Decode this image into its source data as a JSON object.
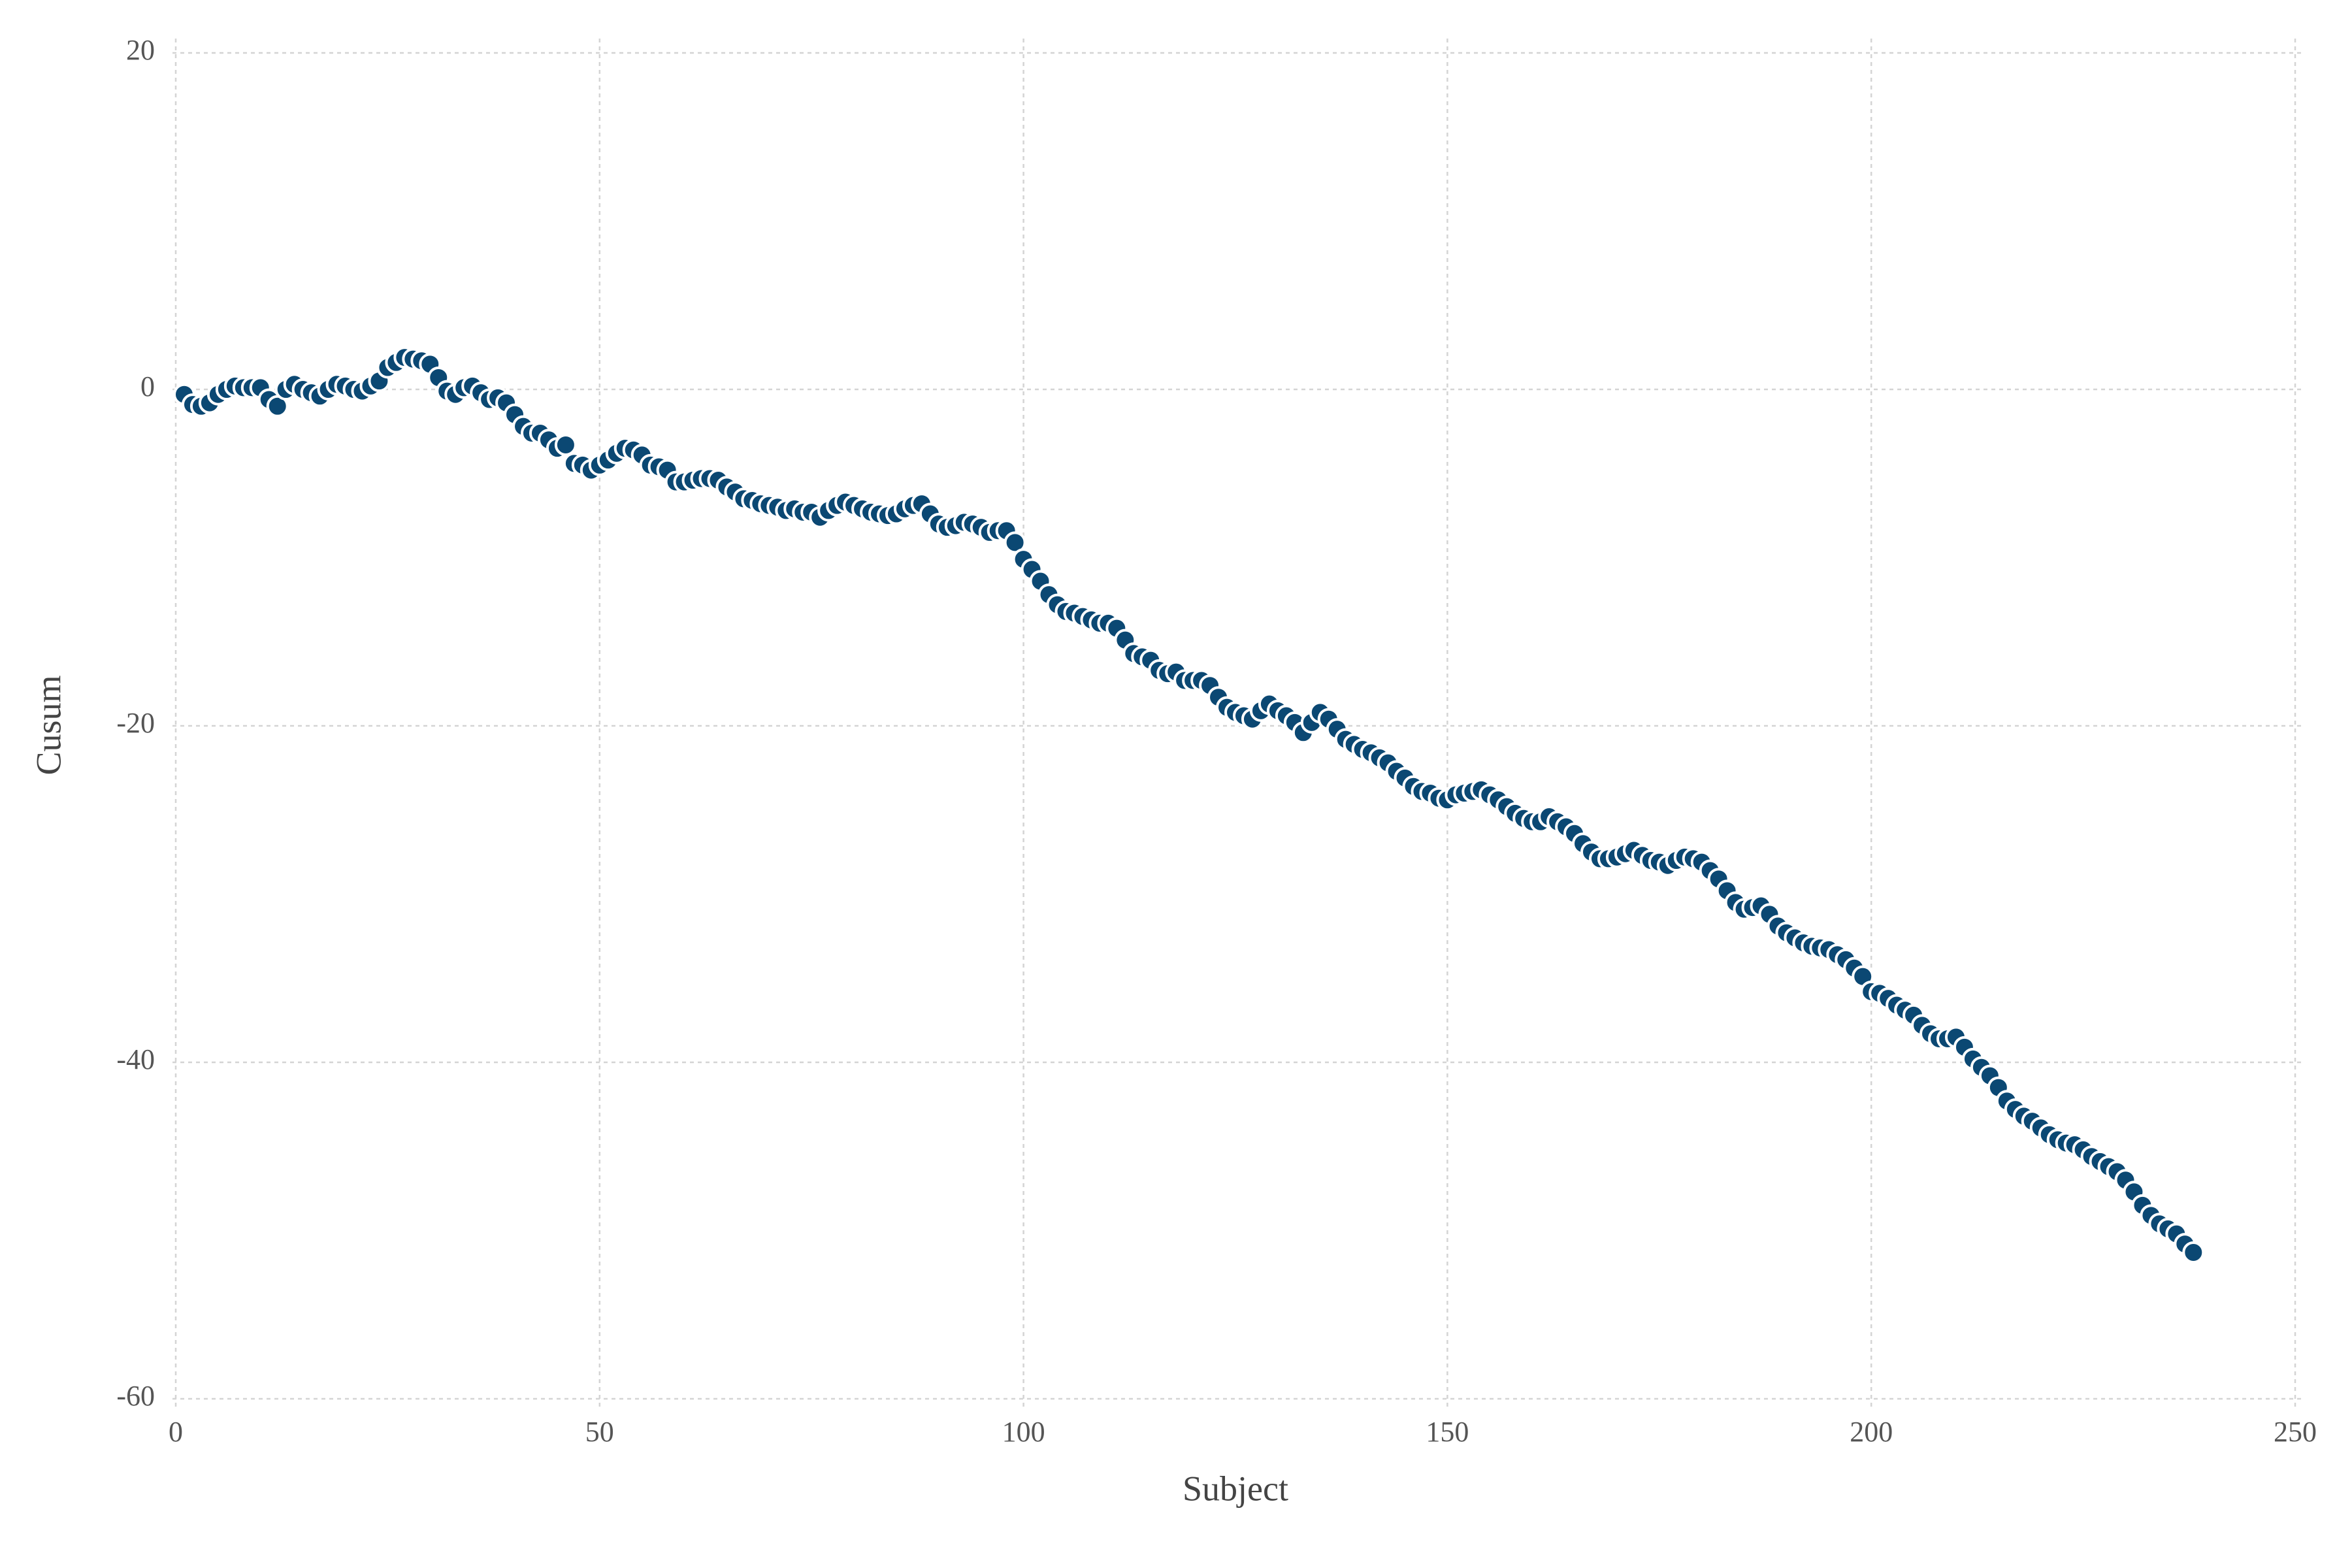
{
  "chart_data": {
    "type": "scatter",
    "x_label": "Subject",
    "y_label": "Cusum",
    "color": "#0b4873",
    "grid": true,
    "xlim": [
      0,
      250
    ],
    "xticks": [
      0,
      50,
      100,
      150,
      200,
      250
    ],
    "ylim": [
      -60,
      20
    ],
    "yticks": [
      -60,
      -40,
      -20,
      0,
      20
    ],
    "x": [
      1,
      2,
      3,
      4,
      5,
      6,
      7,
      8,
      9,
      10,
      11,
      12,
      13,
      14,
      15,
      16,
      17,
      18,
      19,
      20,
      21,
      22,
      23,
      24,
      25,
      26,
      27,
      28,
      29,
      30,
      31,
      32,
      33,
      34,
      35,
      36,
      37,
      38,
      39,
      40,
      41,
      42,
      43,
      44,
      45,
      46,
      47,
      48,
      49,
      50,
      51,
      52,
      53,
      54,
      55,
      56,
      57,
      58,
      59,
      60,
      61,
      62,
      63,
      64,
      65,
      66,
      67,
      68,
      69,
      70,
      71,
      72,
      73,
      74,
      75,
      76,
      77,
      78,
      79,
      80,
      81,
      82,
      83,
      84,
      85,
      86,
      87,
      88,
      89,
      90,
      91,
      92,
      93,
      94,
      95,
      96,
      97,
      98,
      99,
      100,
      101,
      102,
      103,
      104,
      105,
      106,
      107,
      108,
      109,
      110,
      111,
      112,
      113,
      114,
      115,
      116,
      117,
      118,
      119,
      120,
      121,
      122,
      123,
      124,
      125,
      126,
      127,
      128,
      129,
      130,
      131,
      132,
      133,
      134,
      135,
      136,
      137,
      138,
      139,
      140,
      141,
      142,
      143,
      144,
      145,
      146,
      147,
      148,
      149,
      150,
      151,
      152,
      153,
      154,
      155,
      156,
      157,
      158,
      159,
      160,
      161,
      162,
      163,
      164,
      165,
      166,
      167,
      168,
      169,
      170,
      171,
      172,
      173,
      174,
      175,
      176,
      177,
      178,
      179,
      180,
      181,
      182,
      183,
      184,
      185,
      186,
      187,
      188,
      189,
      190,
      191,
      192,
      193,
      194,
      195,
      196,
      197,
      198,
      199,
      200,
      201,
      202,
      203,
      204,
      205,
      206,
      207,
      208,
      209,
      210,
      211,
      212,
      213,
      214,
      215,
      216,
      217,
      218,
      219,
      220,
      221,
      222,
      223,
      224,
      225,
      226,
      227,
      228,
      229,
      230,
      231,
      232,
      233,
      234,
      235,
      236,
      237,
      238
    ],
    "values": [
      -0.3,
      -0.9,
      -1.0,
      -0.8,
      -0.3,
      0,
      0.2,
      0.1,
      0.1,
      0.1,
      -0.6,
      -1.0,
      0,
      0.3,
      0,
      -0.2,
      -0.4,
      0,
      0.3,
      0.2,
      0,
      -0.1,
      0.2,
      0.5,
      1.3,
      1.6,
      1.9,
      1.8,
      1.7,
      1.5,
      0.7,
      -0.1,
      -0.3,
      0.1,
      0.2,
      -0.2,
      -0.6,
      -0.5,
      -0.8,
      -1.5,
      -2.2,
      -2.6,
      -2.6,
      -3,
      -3.5,
      -3.3,
      -4.4,
      -4.5,
      -4.8,
      -4.5,
      -4.2,
      -3.8,
      -3.5,
      -3.6,
      -3.9,
      -4.5,
      -4.6,
      -4.8,
      -5.5,
      -5.5,
      -5.4,
      -5.3,
      -5.3,
      -5.4,
      -5.8,
      -6.1,
      -6.5,
      -6.6,
      -6.8,
      -6.9,
      -7,
      -7.2,
      -7.1,
      -7.3,
      -7.3,
      -7.6,
      -7.2,
      -6.9,
      -6.7,
      -6.9,
      -7.1,
      -7.3,
      -7.4,
      -7.5,
      -7.4,
      -7.1,
      -6.9,
      -6.8,
      -7.4,
      -8.0,
      -8.2,
      -8.1,
      -7.9,
      -8,
      -8.2,
      -8.5,
      -8.4,
      -8.4,
      -9.1,
      -10.1,
      -10.7,
      -11.4,
      -12.2,
      -12.8,
      -13.2,
      -13.3,
      -13.5,
      -13.7,
      -13.9,
      -13.9,
      -14.2,
      -14.9,
      -15.7,
      -15.9,
      -16.1,
      -16.7,
      -16.9,
      -16.8,
      -17.3,
      -17.3,
      -17.3,
      -17.6,
      -18.3,
      -18.9,
      -19.2,
      -19.4,
      -19.6,
      -19.1,
      -18.7,
      -19.1,
      -19.4,
      -19.8,
      -20.4,
      -19.8,
      -19.2,
      -19.6,
      -20.2,
      -20.8,
      -21.1,
      -21.4,
      -21.6,
      -21.9,
      -22.2,
      -22.7,
      -23.1,
      -23.6,
      -23.9,
      -24,
      -24.3,
      -24.4,
      -24.1,
      -24,
      -23.9,
      -23.8,
      -24.1,
      -24.4,
      -24.8,
      -25.2,
      -25.5,
      -25.7,
      -25.7,
      -25.4,
      -25.7,
      -26,
      -26.4,
      -27,
      -27.5,
      -27.9,
      -27.9,
      -27.8,
      -27.6,
      -27.4,
      -27.7,
      -28,
      -28.1,
      -28.3,
      -28,
      -27.8,
      -27.9,
      -28.1,
      -28.6,
      -29.1,
      -29.8,
      -30.5,
      -30.9,
      -30.8,
      -30.7,
      -31.2,
      -31.9,
      -32.3,
      -32.6,
      -32.9,
      -33.1,
      -33.2,
      -33.3,
      -33.6,
      -33.9,
      -34.4,
      -34.9,
      -35.8,
      -35.9,
      -36.2,
      -36.6,
      -36.9,
      -37.2,
      -37.8,
      -38.3,
      -38.6,
      -38.6,
      -38.5,
      -39.1,
      -39.8,
      -40.3,
      -40.8,
      -41.5,
      -42.3,
      -42.8,
      -43.2,
      -43.5,
      -43.9,
      -44.3,
      -44.6,
      -44.8,
      -44.9,
      -45.2,
      -45.6,
      -45.9,
      -46.2,
      -46.5,
      -47,
      -47.7,
      -48.5,
      -49.1,
      -49.6,
      -49.9,
      -50.2,
      -50.8,
      -51.3
    ]
  }
}
